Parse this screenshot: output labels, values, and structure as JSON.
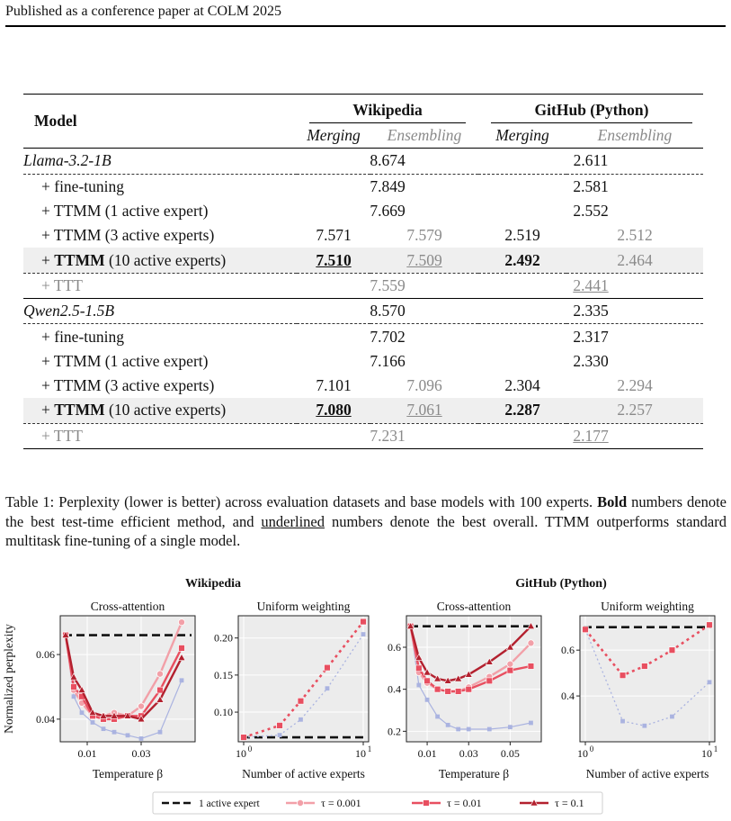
{
  "header": "Published as a conference paper at COLM 2025",
  "table": {
    "col_model": "Model",
    "groups": [
      "Wikipedia",
      "GitHub (Python)"
    ],
    "subcols": [
      "Merging",
      "Ensembling",
      "Merging",
      "Ensembling"
    ],
    "sections": [
      {
        "base": {
          "label": "Llama-3.2-1B",
          "wiki": "8.674",
          "gh": "2.611"
        },
        "rows": [
          {
            "label": "+ fine-tuning",
            "wiki": "7.849",
            "gh": "2.581"
          },
          {
            "label": "+ TTMM (1 active expert)",
            "wiki": "7.669",
            "gh": "2.552"
          },
          {
            "label": "+ TTMM (3 active experts)",
            "wm": "7.571",
            "we": "7.579",
            "gm": "2.519",
            "ge": "2.512"
          },
          {
            "label_bold": "TTMM",
            "label_rest": " (10 active experts)",
            "wm": "7.510",
            "we": "7.509",
            "gm": "2.492",
            "ge": "2.464"
          }
        ],
        "ttt": {
          "label": "+ TTT",
          "wiki": "7.559",
          "gh": "2.441"
        }
      },
      {
        "base": {
          "label": "Qwen2.5-1.5B",
          "wiki": "8.570",
          "gh": "2.335"
        },
        "rows": [
          {
            "label": "+ fine-tuning",
            "wiki": "7.702",
            "gh": "2.317"
          },
          {
            "label": "+ TTMM (1 active expert)",
            "wiki": "7.166",
            "gh": "2.330"
          },
          {
            "label": "+ TTMM (3 active experts)",
            "wm": "7.101",
            "we": "7.096",
            "gm": "2.304",
            "ge": "2.294"
          },
          {
            "label_bold": "TTMM",
            "label_rest": " (10 active experts)",
            "wm": "7.080",
            "we": "7.061",
            "gm": "2.287",
            "ge": "2.257"
          }
        ],
        "ttt": {
          "label": "+ TTT",
          "wiki": "7.231",
          "gh": "2.177"
        }
      }
    ]
  },
  "caption": {
    "p1": "Table 1: Perplexity (lower is better) across evaluation datasets and base models with 100 experts. ",
    "bold": "Bold",
    "p2": " numbers denote the best test-time efficient method, and ",
    "underlined": "underlined",
    "p3": " numbers denote the best overall. TTMM outperforms standard multitask fine-tuning of a single model."
  },
  "figure": {
    "ylabel": "Normalized perplexity",
    "group_titles": [
      "Wikipedia",
      "GitHub (Python)"
    ],
    "legend": {
      "baseline": "1 active expert",
      "tau1": "τ = 0.001",
      "tau2": "τ = 0.01",
      "tau3": "τ = 0.1"
    },
    "colors": {
      "baseline": "#111111",
      "tau1": "#f2a0a8",
      "tau2": "#e84f60",
      "tau3": "#b3202e",
      "aux": "#aab3e0",
      "panel_bg": "#ececec"
    }
  },
  "chart_data": [
    {
      "type": "line",
      "title": "Cross-attention",
      "xlabel": "Temperature β",
      "xticks": [
        "0.01",
        "0.03"
      ],
      "yticks": [
        "0.04",
        "0.06"
      ],
      "xlim": [
        0,
        0.05
      ],
      "ylim": [
        0.033,
        0.072
      ],
      "baseline": 0.066,
      "x": [
        0.002,
        0.005,
        0.008,
        0.012,
        0.016,
        0.02,
        0.025,
        0.03,
        0.037,
        0.045
      ],
      "series": [
        {
          "name": "τ = 0.001",
          "values": [
            0.066,
            0.049,
            0.045,
            0.041,
            0.041,
            0.042,
            0.041,
            0.044,
            0.054,
            0.07
          ]
        },
        {
          "name": "τ = 0.01",
          "values": [
            0.066,
            0.05,
            0.047,
            0.041,
            0.04,
            0.04,
            0.041,
            0.041,
            0.049,
            0.062
          ]
        },
        {
          "name": "τ = 0.1",
          "values": [
            0.066,
            0.053,
            0.049,
            0.042,
            0.041,
            0.041,
            0.041,
            0.04,
            0.046,
            0.059
          ]
        },
        {
          "name": "",
          "values": [
            0.066,
            0.047,
            0.042,
            0.039,
            0.037,
            0.036,
            0.035,
            0.034,
            0.036,
            0.052
          ]
        }
      ]
    },
    {
      "type": "line",
      "title": "Uniform weighting",
      "xlabel": "Number of active experts",
      "xscale": "log",
      "xticks": [
        "10^0",
        "10^1"
      ],
      "yticks": [
        "0.10",
        "0.15",
        "0.20"
      ],
      "xlim": [
        1,
        10
      ],
      "ylim": [
        0.06,
        0.23
      ],
      "baseline": 0.066,
      "x": [
        1,
        2,
        3,
        5,
        10
      ],
      "series": [
        {
          "name": "τ = 0.01",
          "values": [
            0.066,
            0.082,
            0.115,
            0.16,
            0.222
          ]
        },
        {
          "name": "",
          "values": [
            0.066,
            0.069,
            0.09,
            0.132,
            0.205
          ]
        }
      ]
    },
    {
      "type": "line",
      "title": "Cross-attention",
      "xlabel": "Temperature β",
      "xticks": [
        "0.01",
        "0.03",
        "0.05"
      ],
      "yticks": [
        "0.2",
        "0.4",
        "0.6"
      ],
      "xlim": [
        0,
        0.065
      ],
      "ylim": [
        0.15,
        0.75
      ],
      "baseline": 0.7,
      "x": [
        0.002,
        0.006,
        0.01,
        0.015,
        0.02,
        0.025,
        0.03,
        0.04,
        0.05,
        0.06
      ],
      "series": [
        {
          "name": "τ = 0.001",
          "values": [
            0.7,
            0.48,
            0.43,
            0.4,
            0.39,
            0.39,
            0.41,
            0.46,
            0.52,
            0.62
          ]
        },
        {
          "name": "τ = 0.01",
          "values": [
            0.7,
            0.5,
            0.44,
            0.4,
            0.39,
            0.39,
            0.4,
            0.44,
            0.49,
            0.51
          ]
        },
        {
          "name": "τ = 0.1",
          "values": [
            0.7,
            0.55,
            0.48,
            0.45,
            0.44,
            0.45,
            0.47,
            0.53,
            0.6,
            0.7
          ]
        },
        {
          "name": "",
          "values": [
            0.7,
            0.42,
            0.35,
            0.27,
            0.23,
            0.21,
            0.21,
            0.21,
            0.22,
            0.24
          ]
        }
      ]
    },
    {
      "type": "line",
      "title": "Uniform weighting",
      "xlabel": "Number of active experts",
      "xscale": "log",
      "xticks": [
        "10^0",
        "10^1"
      ],
      "yticks": [
        "0.4",
        "0.6"
      ],
      "xlim": [
        1,
        10
      ],
      "ylim": [
        0.2,
        0.75
      ],
      "baseline": 0.7,
      "x": [
        1,
        2,
        3,
        5,
        10
      ],
      "series": [
        {
          "name": "τ = 0.01",
          "values": [
            0.69,
            0.49,
            0.53,
            0.6,
            0.71
          ]
        },
        {
          "name": "",
          "values": [
            0.69,
            0.29,
            0.27,
            0.31,
            0.46
          ]
        }
      ]
    }
  ]
}
